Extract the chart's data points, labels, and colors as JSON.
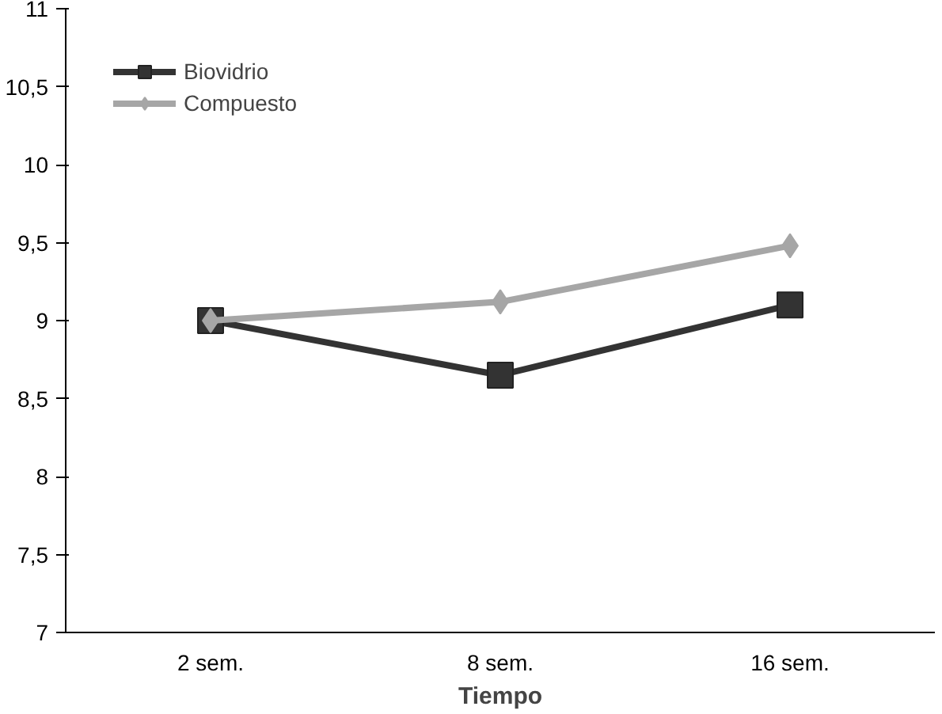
{
  "chart_data": {
    "type": "line",
    "xlabel": "Tiempo",
    "categories": [
      "2 sem.",
      "8 sem.",
      "16 sem."
    ],
    "series": [
      {
        "name": "Biovidrio",
        "color": "#333333",
        "values": [
          9.0,
          8.65,
          9.1
        ],
        "marker": "square"
      },
      {
        "name": "Compuesto",
        "color": "#a6a6a6",
        "values": [
          9.0,
          9.12,
          9.48
        ],
        "marker": "diamond"
      }
    ],
    "ylim": [
      7,
      11
    ],
    "yticks": [
      7,
      {
        "value": 7.5,
        "label": "7,5"
      },
      8,
      {
        "value": 8.5,
        "label": "8,5"
      },
      9,
      {
        "value": 9.5,
        "label": "9,5"
      },
      10,
      {
        "value": 10.5,
        "label": "10,5"
      },
      11
    ],
    "grid": false,
    "legend": "top left"
  }
}
